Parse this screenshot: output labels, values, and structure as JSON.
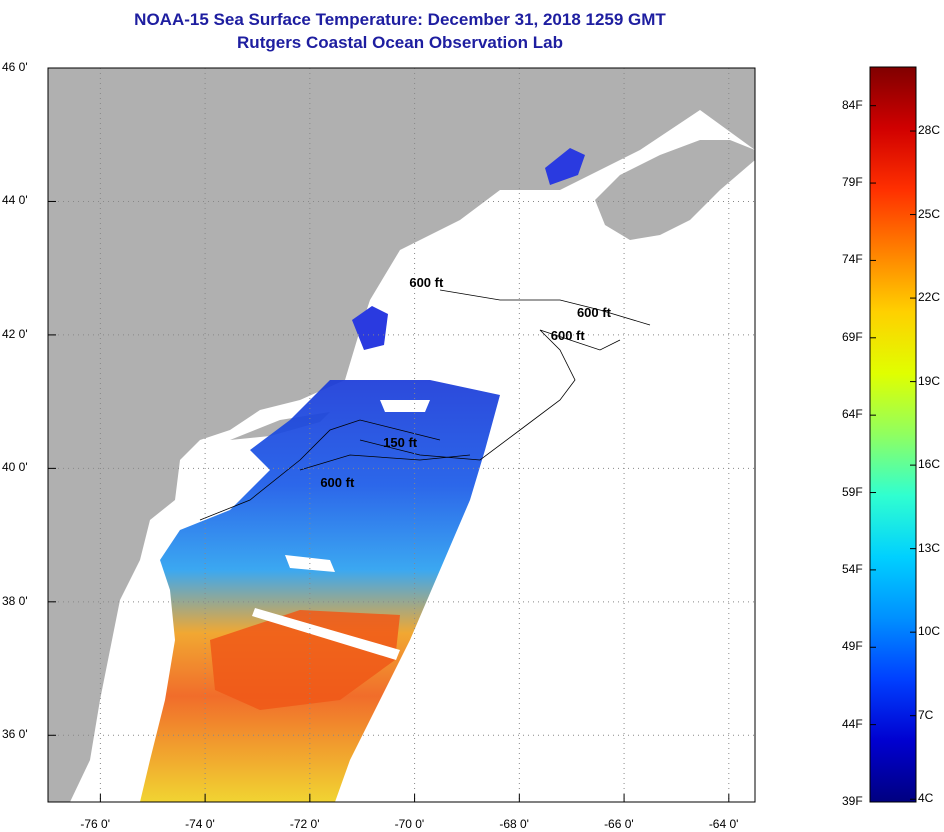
{
  "title": "NOAA-15 Sea Surface Temperature:  December 31, 2018 1259 GMT",
  "subtitle": "Rutgers Coastal Ocean Observation Lab",
  "lat_ticks": [
    "46 0'",
    "44 0'",
    "42 0'",
    "40 0'",
    "38 0'",
    "36 0'"
  ],
  "lon_ticks": [
    "-76 0'",
    "-74 0'",
    "-72 0'",
    "-70 0'",
    "-68 0'",
    "-66 0'",
    "-64 0'"
  ],
  "lat_values": [
    46,
    44,
    42,
    40,
    38,
    36
  ],
  "lon_values": [
    -76,
    -74,
    -72,
    -70,
    -68,
    -66,
    -64
  ],
  "map_extent": {
    "lon_min": -77,
    "lon_max": -63.5,
    "lat_min": 35,
    "lat_max": 46
  },
  "depth_labels": [
    {
      "text": "600 ft",
      "lon": -70.1,
      "lat": 42.9
    },
    {
      "text": "600 ft",
      "lon": -66.9,
      "lat": 42.45
    },
    {
      "text": "600 ft",
      "lon": -67.4,
      "lat": 42.1
    },
    {
      "text": "150 ft",
      "lon": -70.6,
      "lat": 40.5
    },
    {
      "text": "600 ft",
      "lon": -71.8,
      "lat": 39.9
    }
  ],
  "colorbar": {
    "fahrenheit": [
      "84F",
      "79F",
      "74F",
      "69F",
      "64F",
      "59F",
      "54F",
      "49F",
      "44F",
      "39F"
    ],
    "celsius": [
      "28C",
      "25C",
      "22C",
      "19C",
      "16C",
      "13C",
      "10C",
      "7C",
      "4C"
    ],
    "colors": [
      "#000080",
      "#0000d0",
      "#0040ff",
      "#0090ff",
      "#00d0ff",
      "#30ffd0",
      "#90ff60",
      "#e0ff00",
      "#ffd000",
      "#ff8000",
      "#ff3000",
      "#d00000",
      "#800000"
    ]
  },
  "colors": {
    "land": "#b0b0b0",
    "title": "#1e1ea0",
    "grid": "#888888"
  }
}
